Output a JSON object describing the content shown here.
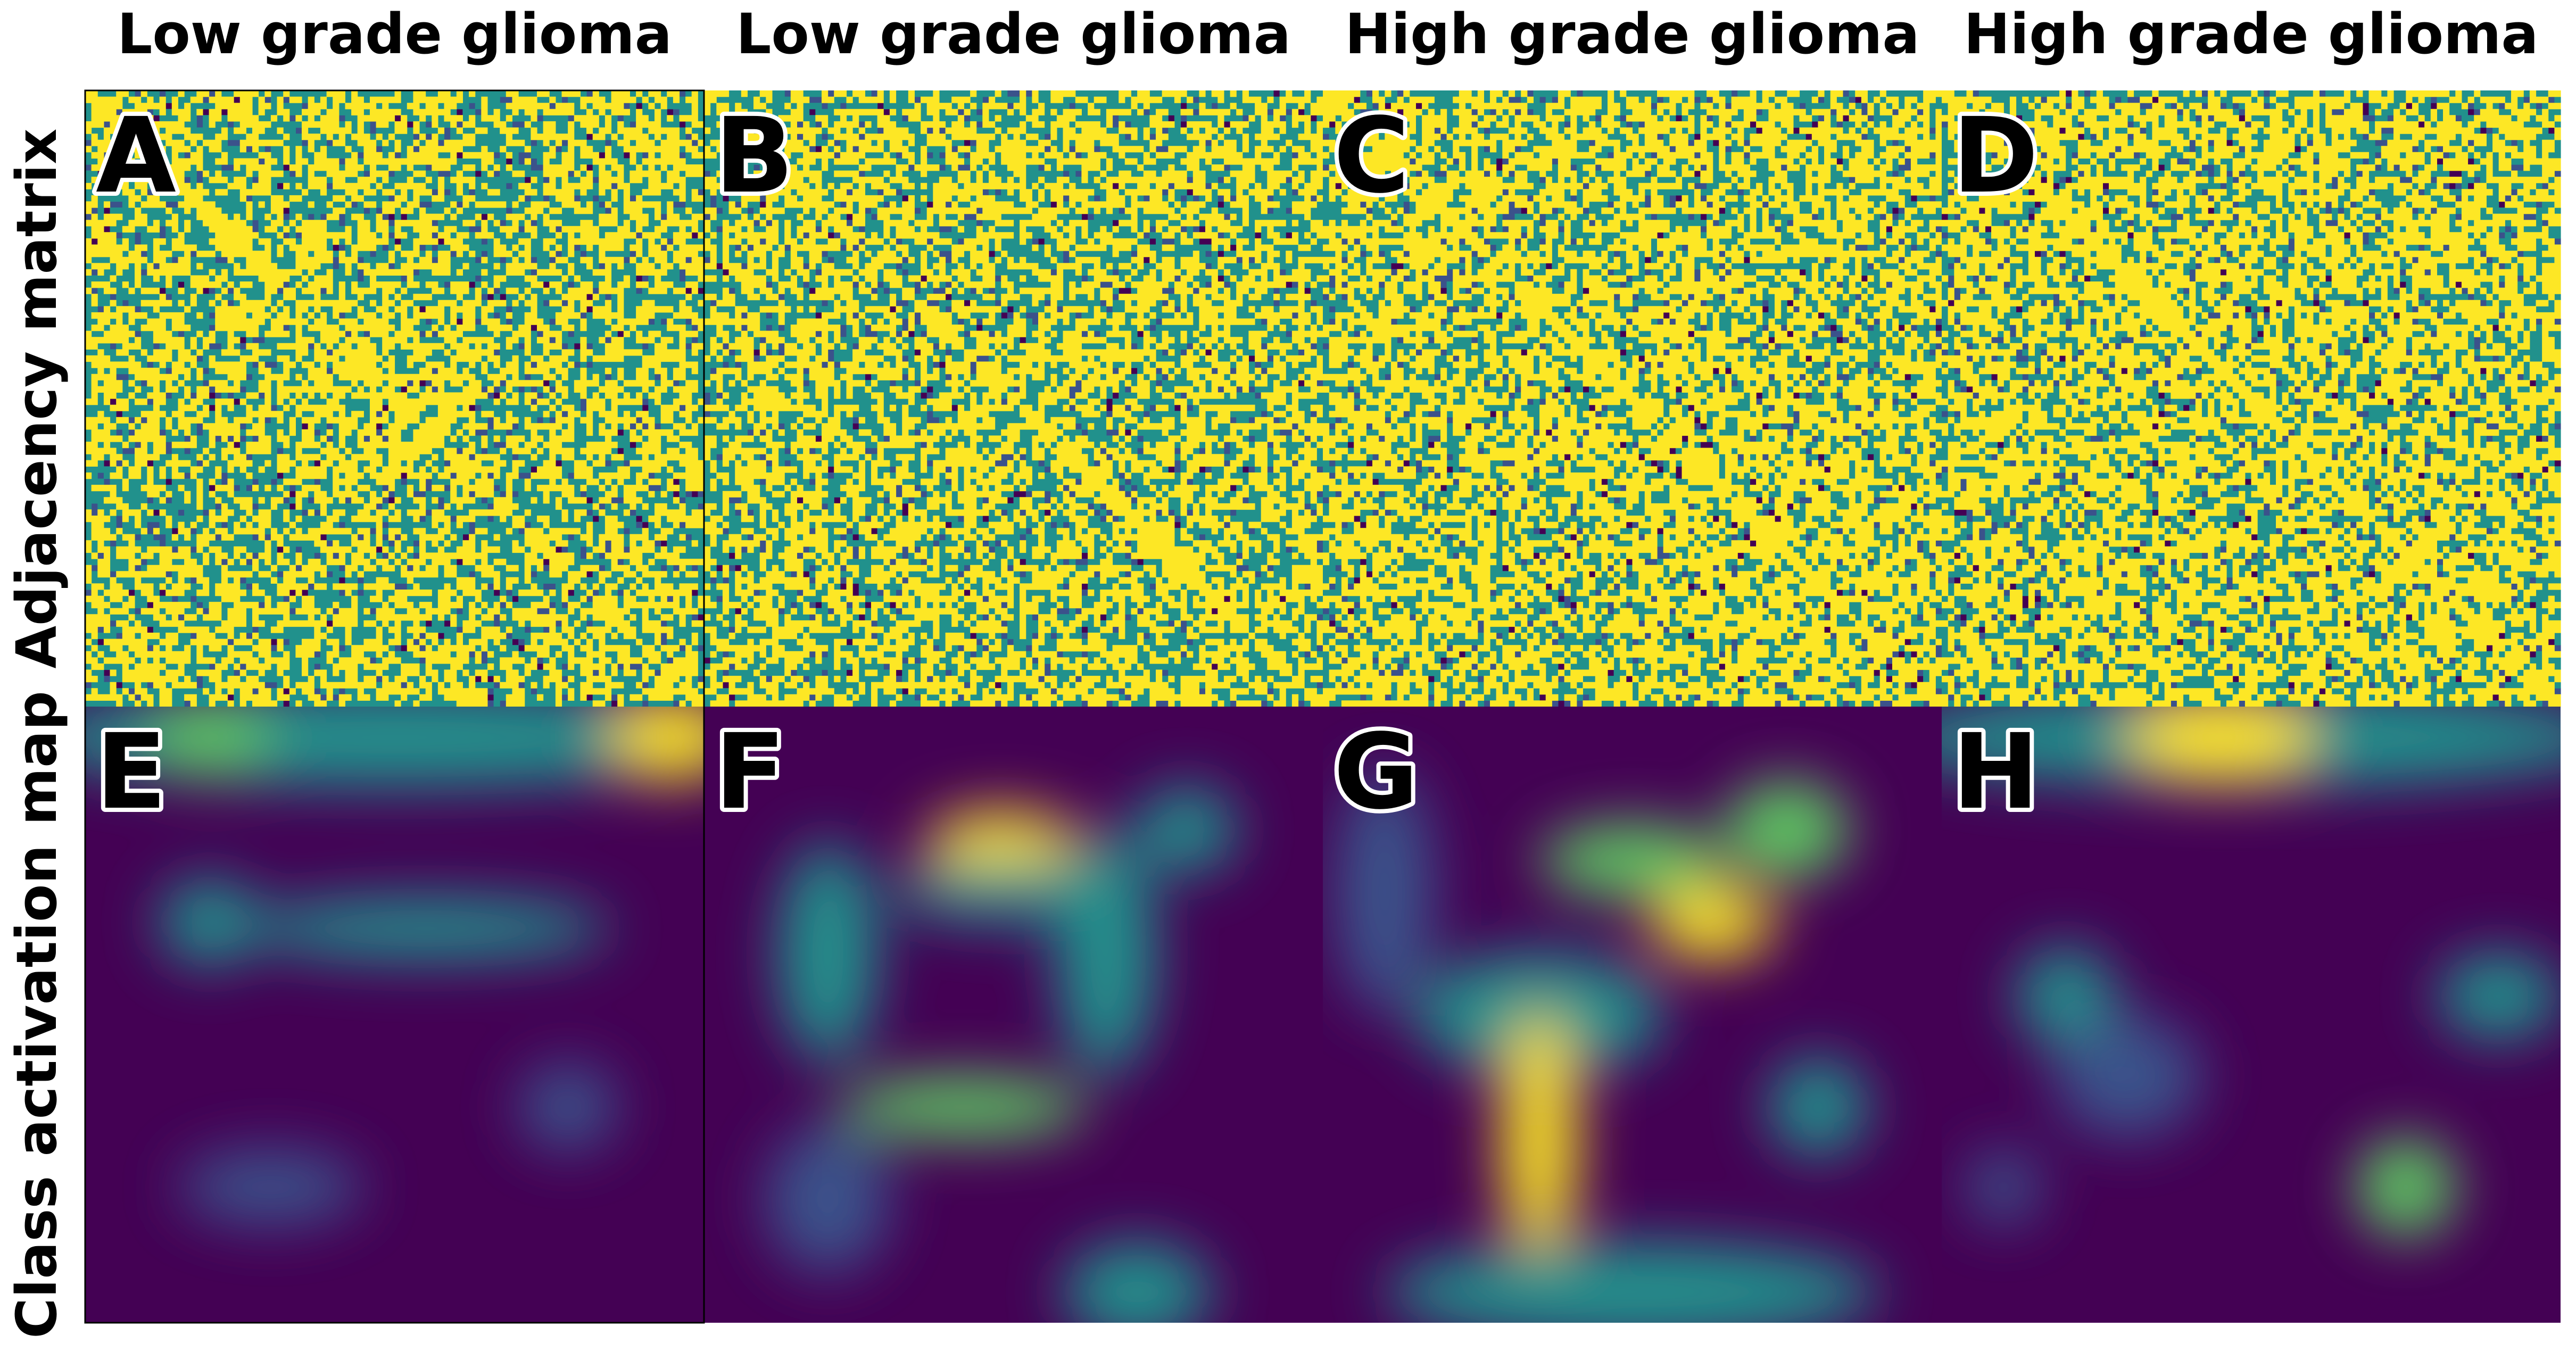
{
  "columns": [
    "Low grade glioma",
    "Low grade glioma",
    "High grade glioma",
    "High grade glioma"
  ],
  "rows": [
    "Adjacency matrix",
    "Class activation map"
  ],
  "panels": [
    "A",
    "B",
    "C",
    "D",
    "E",
    "F",
    "G",
    "H"
  ]
}
